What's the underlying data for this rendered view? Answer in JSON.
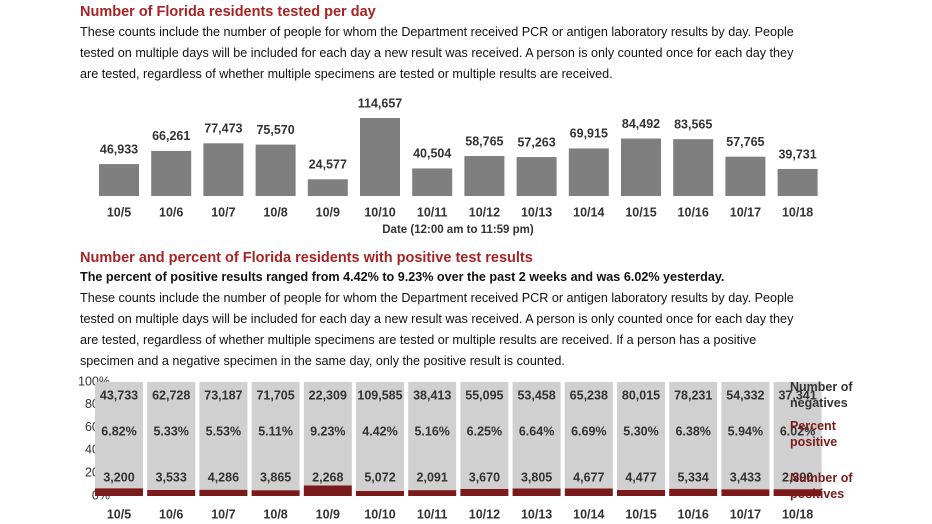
{
  "chart_data": [
    {
      "type": "bar",
      "title": "Number of Florida residents tested per day",
      "note": "These counts include the number of people for whom the Department received PCR or antigen laboratory results by day. People tested on multiple days will be included for each day a new result was received. A person is only counted once for each day they are tested, regardless of whether multiple specimens are tested or multiple results are received.",
      "xlabel": "Date (12:00 am to 11:59 pm)",
      "categories": [
        "10/5",
        "10/6",
        "10/7",
        "10/8",
        "10/9",
        "10/10",
        "10/11",
        "10/12",
        "10/13",
        "10/14",
        "10/15",
        "10/16",
        "10/17",
        "10/18"
      ],
      "values": [
        46933,
        66261,
        77473,
        75570,
        24577,
        114657,
        40504,
        58765,
        57263,
        69915,
        84492,
        83565,
        57765,
        39731
      ],
      "value_labels": [
        "46,933",
        "66,261",
        "77,473",
        "75,570",
        "24,577",
        "114,657",
        "40,504",
        "58,765",
        "57,263",
        "69,915",
        "84,492",
        "83,565",
        "57,765",
        "39,731"
      ],
      "color": "#7f7f7f"
    },
    {
      "type": "stacked_bar_100",
      "title": "Number and percent of Florida residents with positive test results",
      "subtitle": "The percent of positive results ranged from 4.42% to 9.23% over the past 2 weeks and was 6.02% yesterday.",
      "note": "These counts include the number of people for whom the Department received PCR or antigen laboratory results by day. People tested on multiple days will be included for each day a new result was received. A person is only counted once for each day they are tested, regardless of whether multiple specimens are tested or multiple results are received. If a person has a positive specimen and a negative specimen in the same day, only the positive result is counted.",
      "categories": [
        "10/5",
        "10/6",
        "10/7",
        "10/8",
        "10/9",
        "10/10",
        "10/11",
        "10/12",
        "10/13",
        "10/14",
        "10/15",
        "10/16",
        "10/17",
        "10/18"
      ],
      "ylim": [
        0,
        100
      ],
      "yticks": [
        {
          "value": 0,
          "label": "0%"
        },
        {
          "value": 20,
          "label": "20%"
        },
        {
          "value": 40,
          "label": "40%"
        },
        {
          "value": 60,
          "label": "60%"
        },
        {
          "value": 80,
          "label": "80%"
        },
        {
          "value": 100,
          "label": "100%"
        }
      ],
      "series": [
        {
          "name": "Number of positives",
          "color": "#7b1a1a",
          "values": [
            3200,
            3533,
            4286,
            3865,
            2268,
            5072,
            2091,
            3670,
            3805,
            4677,
            4477,
            5334,
            3433,
            2390
          ],
          "value_labels": [
            "3,200",
            "3,533",
            "4,286",
            "3,865",
            "2,268",
            "5,072",
            "2,091",
            "3,670",
            "3,805",
            "4,677",
            "4,477",
            "5,334",
            "3,433",
            "2,390"
          ]
        },
        {
          "name": "Number of negatives",
          "color": "#d0d0d0",
          "values": [
            43733,
            62728,
            73187,
            71705,
            22309,
            109585,
            38413,
            55095,
            53458,
            65238,
            80015,
            78231,
            54332,
            37341
          ],
          "value_labels": [
            "43,733",
            "62,728",
            "73,187",
            "71,705",
            "22,309",
            "109,585",
            "38,413",
            "55,095",
            "53,458",
            "65,238",
            "80,015",
            "78,231",
            "54,332",
            "37,341"
          ]
        }
      ],
      "percent_positive": {
        "name": "Percent positive",
        "color": "#7b1a1a",
        "values": [
          6.82,
          5.33,
          5.53,
          5.11,
          9.23,
          4.42,
          5.16,
          6.25,
          6.64,
          6.69,
          5.3,
          6.38,
          5.94,
          6.02
        ],
        "value_labels": [
          "6.82%",
          "5.33%",
          "5.53%",
          "5.11%",
          "9.23%",
          "4.42%",
          "5.16%",
          "6.25%",
          "6.64%",
          "6.69%",
          "5.30%",
          "6.38%",
          "5.94%",
          "6.02%"
        ]
      }
    }
  ]
}
